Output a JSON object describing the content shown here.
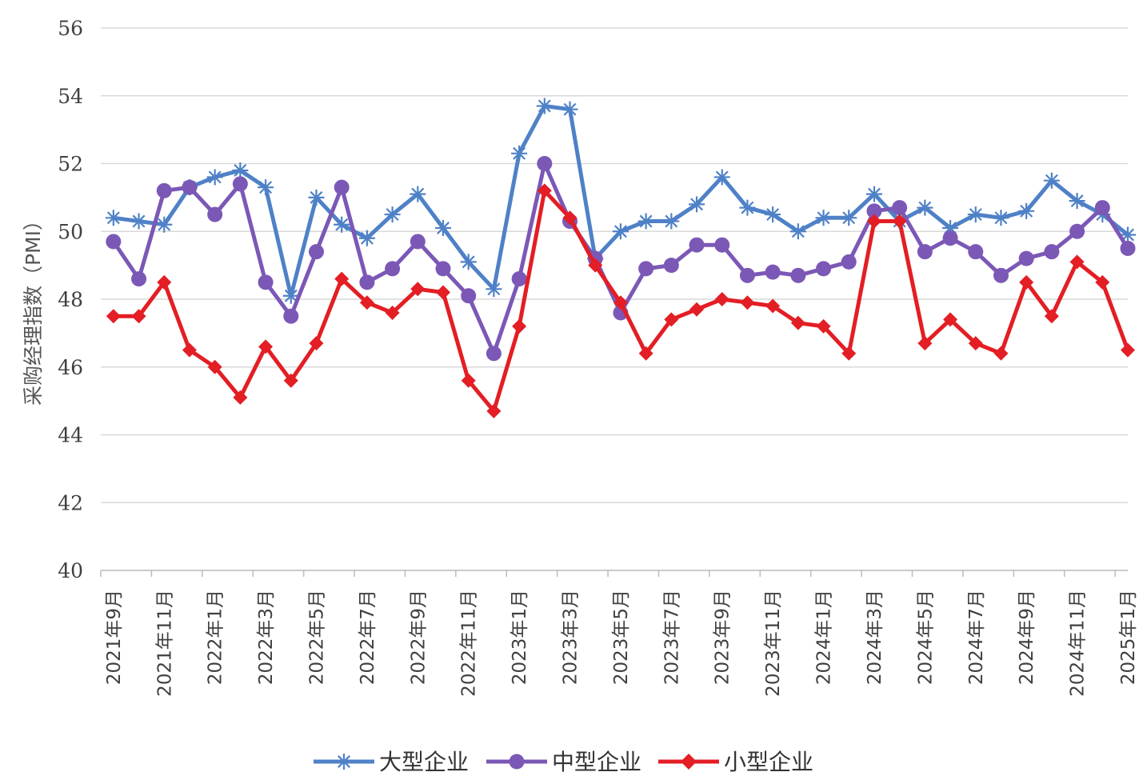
{
  "chart_data": {
    "type": "line",
    "title": "",
    "xlabel": "",
    "ylabel": "采购经理指数（PMI）",
    "ylim": [
      40,
      56
    ],
    "yticks": [
      40,
      42,
      44,
      46,
      48,
      50,
      52,
      54,
      56
    ],
    "grid": true,
    "legend_position": "bottom",
    "categories": [
      "2021年9月",
      "2021年10月",
      "2021年11月",
      "2021年12月",
      "2022年1月",
      "2022年2月",
      "2022年3月",
      "2022年4月",
      "2022年5月",
      "2022年6月",
      "2022年7月",
      "2022年8月",
      "2022年9月",
      "2022年10月",
      "2022年11月",
      "2022年12月",
      "2023年1月",
      "2023年2月",
      "2023年3月",
      "2023年4月",
      "2023年5月",
      "2023年6月",
      "2023年7月",
      "2023年8月",
      "2023年9月",
      "2023年10月",
      "2023年11月",
      "2023年12月",
      "2024年1月",
      "2024年2月",
      "2024年3月",
      "2024年4月",
      "2024年5月",
      "2024年6月",
      "2024年7月",
      "2024年8月",
      "2024年9月",
      "2024年10月",
      "2024年11月",
      "2024年12月",
      "2025年1月"
    ],
    "tick_labels": [
      "2021年9月",
      "2021年11月",
      "2022年1月",
      "2022年3月",
      "2022年5月",
      "2022年7月",
      "2022年9月",
      "2022年11月",
      "2023年1月",
      "2023年3月",
      "2023年5月",
      "2023年7月",
      "2023年9月",
      "2023年11月",
      "2024年1月",
      "2024年3月",
      "2024年5月",
      "2024年7月",
      "2024年9月",
      "2024年11月",
      "2025年1月"
    ],
    "series": [
      {
        "name": "大型企业",
        "color": "#4f81c7",
        "marker": "asterisk",
        "values": [
          50.4,
          50.3,
          50.2,
          51.3,
          51.6,
          51.8,
          51.3,
          48.1,
          51.0,
          50.2,
          49.8,
          50.5,
          51.1,
          50.1,
          49.1,
          48.3,
          52.3,
          53.7,
          53.6,
          49.2,
          50.0,
          50.3,
          50.3,
          50.8,
          51.6,
          50.7,
          50.5,
          50.0,
          50.4,
          50.4,
          51.1,
          50.3,
          50.7,
          50.1,
          50.5,
          50.4,
          50.6,
          51.5,
          50.9,
          50.5,
          49.9
        ]
      },
      {
        "name": "中型企业",
        "color": "#7b58b6",
        "marker": "circle",
        "values": [
          49.7,
          48.6,
          51.2,
          51.3,
          50.5,
          51.4,
          48.5,
          47.5,
          49.4,
          51.3,
          48.5,
          48.9,
          49.7,
          48.9,
          48.1,
          46.4,
          48.6,
          52.0,
          50.3,
          49.2,
          47.6,
          48.9,
          49.0,
          49.6,
          49.6,
          48.7,
          48.8,
          48.7,
          48.9,
          49.1,
          50.6,
          50.7,
          49.4,
          49.8,
          49.4,
          48.7,
          49.2,
          49.4,
          50.0,
          50.7,
          49.5
        ]
      },
      {
        "name": "小型企业",
        "color": "#e31e24",
        "marker": "diamond",
        "values": [
          47.5,
          47.5,
          48.5,
          46.5,
          46.0,
          45.1,
          46.6,
          45.6,
          46.7,
          48.6,
          47.9,
          47.6,
          48.3,
          48.2,
          45.6,
          44.7,
          47.2,
          51.2,
          50.4,
          49.0,
          47.9,
          46.4,
          47.4,
          47.7,
          48.0,
          47.9,
          47.8,
          47.3,
          47.2,
          46.4,
          50.3,
          50.3,
          46.7,
          47.4,
          46.7,
          46.4,
          48.5,
          47.5,
          49.1,
          48.5,
          46.5
        ]
      }
    ]
  }
}
